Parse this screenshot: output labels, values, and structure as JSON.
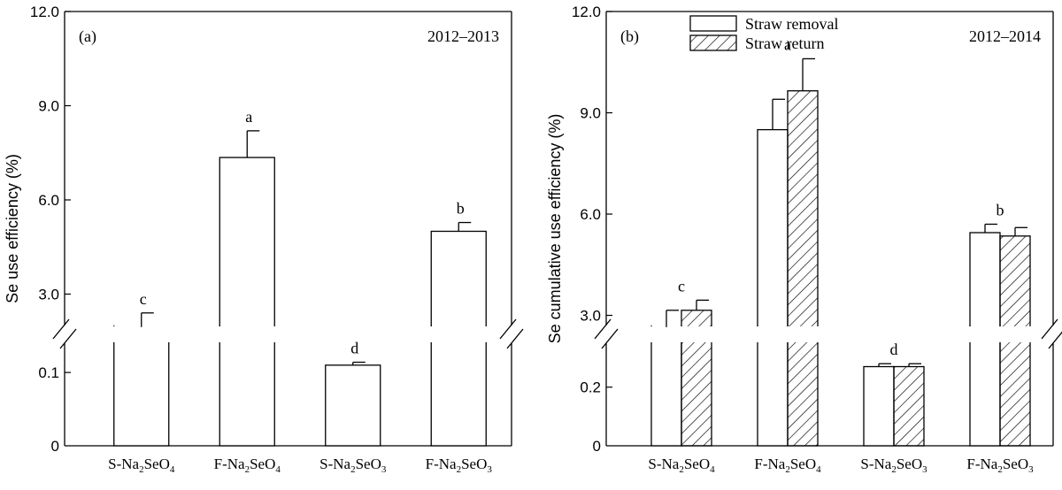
{
  "chart_data": [
    {
      "type": "bar",
      "panel_label": "(a)",
      "period": "2012–2013",
      "ylabel": "Se use efficiency (%)",
      "categories": [
        {
          "prefix": "S-Na",
          "sub1": "2",
          "mid": "SeO",
          "sub2": "4"
        },
        {
          "prefix": "F-Na",
          "sub1": "2",
          "mid": "SeO",
          "sub2": "4"
        },
        {
          "prefix": "S-Na",
          "sub1": "2",
          "mid": "SeO",
          "sub2": "3"
        },
        {
          "prefix": "F-Na",
          "sub1": "2",
          "mid": "SeO",
          "sub2": "3"
        }
      ],
      "broken_axis": true,
      "lower_segment": {
        "ylim": [
          0,
          0.14
        ],
        "ticks": [
          "0",
          "0.1"
        ]
      },
      "upper_segment": {
        "ylim": [
          2.0,
          12.0
        ],
        "ticks": [
          "3.0",
          "6.0",
          "9.0",
          "12.0"
        ]
      },
      "series": [
        {
          "pattern": "open",
          "values": [
            1.95,
            7.35,
            0.11,
            5.0
          ],
          "errors": [
            0.45,
            0.85,
            0.004,
            0.28
          ]
        }
      ],
      "significance_letters": [
        "c",
        "a",
        "d",
        "b"
      ],
      "grid": false
    },
    {
      "type": "bar",
      "panel_label": "(b)",
      "period": "2012–2014",
      "ylabel": "Se cumulative use efficiency (%)",
      "categories": [
        {
          "prefix": "S-Na",
          "sub1": "2",
          "mid": "SeO",
          "sub2": "4"
        },
        {
          "prefix": "F-Na",
          "sub1": "2",
          "mid": "SeO",
          "sub2": "4"
        },
        {
          "prefix": "S-Na",
          "sub1": "2",
          "mid": "SeO",
          "sub2": "3"
        },
        {
          "prefix": "F-Na",
          "sub1": "2",
          "mid": "SeO",
          "sub2": "3"
        }
      ],
      "broken_axis": true,
      "lower_segment": {
        "ylim": [
          0,
          0.35
        ],
        "ticks": [
          "0",
          "0.2"
        ]
      },
      "upper_segment": {
        "ylim": [
          2.7,
          12.0
        ],
        "ticks": [
          "3.0",
          "6.0",
          "9.0",
          "12.0"
        ]
      },
      "series": [
        {
          "name": "Straw removal",
          "pattern": "open",
          "values": [
            2.65,
            8.5,
            0.27,
            5.45
          ],
          "errors": [
            0.5,
            0.9,
            0.01,
            0.25
          ]
        },
        {
          "name": "Straw return",
          "pattern": "hatched",
          "values": [
            3.15,
            9.65,
            0.27,
            5.35
          ],
          "errors": [
            0.3,
            0.95,
            0.01,
            0.25
          ]
        }
      ],
      "significance_letters": [
        "c",
        "a",
        "d",
        "b"
      ],
      "legend_position": "top",
      "grid": false
    }
  ]
}
